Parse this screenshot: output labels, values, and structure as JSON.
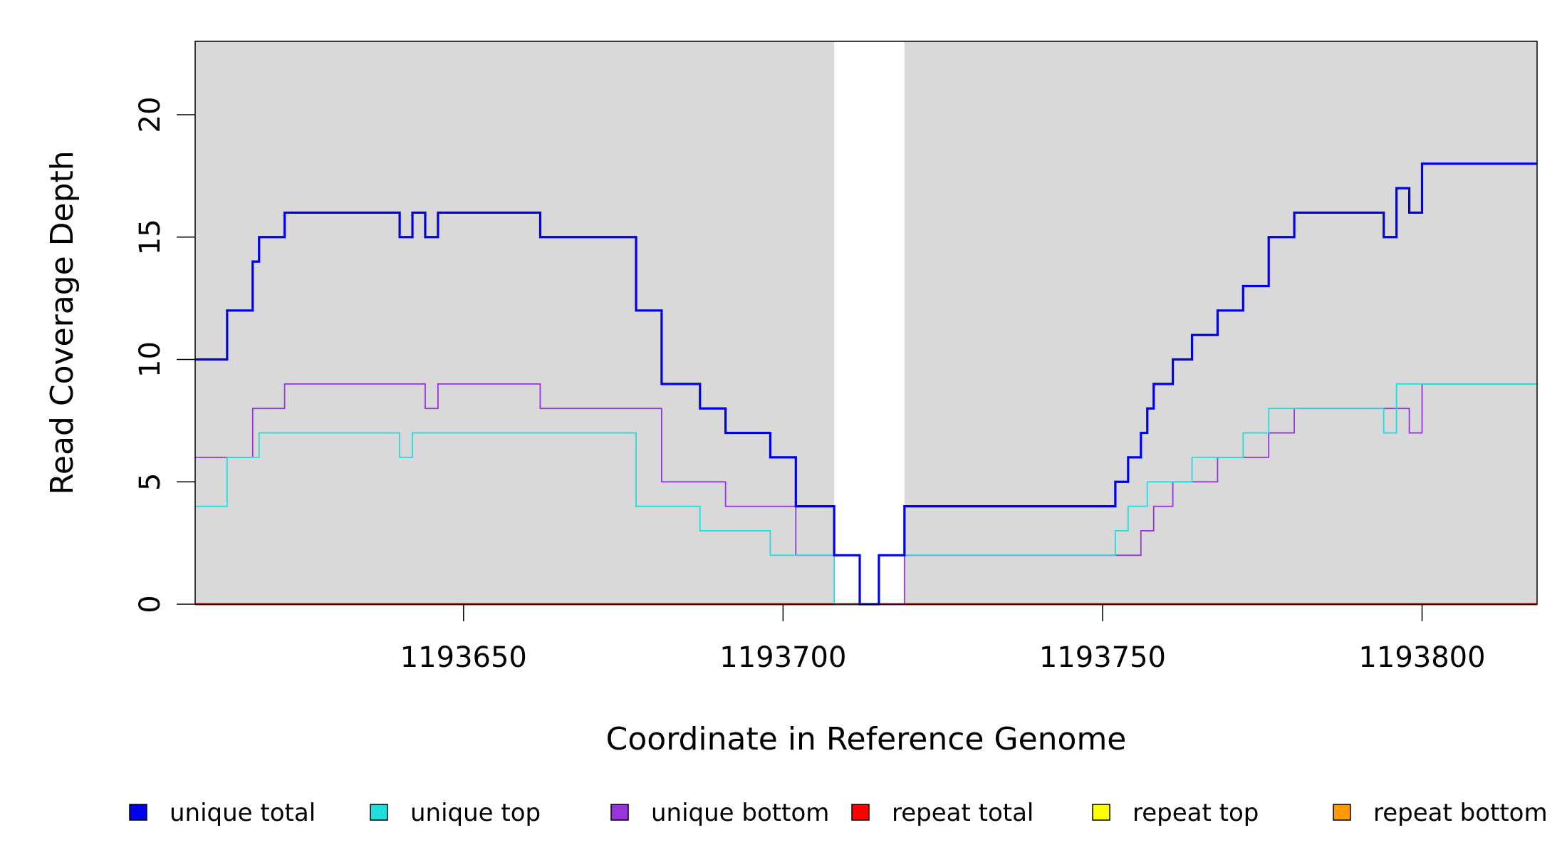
{
  "chart_data": {
    "type": "line",
    "title": "",
    "xlabel": "Coordinate in Reference Genome",
    "ylabel": "Read Coverage Depth",
    "xlim": [
      1193608,
      1193818
    ],
    "ylim": [
      0,
      23
    ],
    "x_ticks": [
      "1193650",
      "1193700",
      "1193750",
      "1193800"
    ],
    "y_ticks": [
      "0",
      "5",
      "10",
      "15",
      "20"
    ],
    "highlight_region": [
      1193708,
      1193719
    ],
    "background_color": "#d9d9d9",
    "highlight_color": "#ffffff",
    "grid": false,
    "legend_position": "bottom",
    "series": [
      {
        "name": "unique total",
        "color": "#0000ee",
        "steps": [
          [
            1193608,
            10
          ],
          [
            1193613,
            12
          ],
          [
            1193617,
            14
          ],
          [
            1193618,
            15
          ],
          [
            1193622,
            16
          ],
          [
            1193640,
            15
          ],
          [
            1193642,
            16
          ],
          [
            1193644,
            15
          ],
          [
            1193646,
            16
          ],
          [
            1193662,
            15
          ],
          [
            1193677,
            12
          ],
          [
            1193681,
            9
          ],
          [
            1193687,
            8
          ],
          [
            1193691,
            7
          ],
          [
            1193698,
            6
          ],
          [
            1193702,
            4
          ],
          [
            1193708,
            2
          ],
          [
            1193712,
            0
          ],
          [
            1193715,
            2
          ],
          [
            1193719,
            4
          ],
          [
            1193752,
            5
          ],
          [
            1193754,
            6
          ],
          [
            1193756,
            7
          ],
          [
            1193757,
            8
          ],
          [
            1193758,
            9
          ],
          [
            1193761,
            10
          ],
          [
            1193764,
            11
          ],
          [
            1193768,
            12
          ],
          [
            1193772,
            13
          ],
          [
            1193776,
            15
          ],
          [
            1193780,
            16
          ],
          [
            1193794,
            15
          ],
          [
            1193796,
            17
          ],
          [
            1193798,
            16
          ],
          [
            1193800,
            18
          ],
          [
            1193818,
            18
          ]
        ]
      },
      {
        "name": "unique top",
        "color": "#22dddd",
        "steps": [
          [
            1193608,
            4
          ],
          [
            1193613,
            6
          ],
          [
            1193618,
            7
          ],
          [
            1193640,
            6
          ],
          [
            1193642,
            7
          ],
          [
            1193677,
            4
          ],
          [
            1193687,
            3
          ],
          [
            1193698,
            2
          ],
          [
            1193708,
            0
          ],
          [
            1193715,
            2
          ],
          [
            1193752,
            3
          ],
          [
            1193754,
            4
          ],
          [
            1193757,
            5
          ],
          [
            1193764,
            6
          ],
          [
            1193772,
            7
          ],
          [
            1193776,
            8
          ],
          [
            1193794,
            7
          ],
          [
            1193796,
            9
          ],
          [
            1193818,
            9
          ]
        ]
      },
      {
        "name": "unique bottom",
        "color": "#9933dd",
        "steps": [
          [
            1193608,
            6
          ],
          [
            1193617,
            8
          ],
          [
            1193622,
            9
          ],
          [
            1193644,
            8
          ],
          [
            1193646,
            9
          ],
          [
            1193662,
            8
          ],
          [
            1193681,
            5
          ],
          [
            1193691,
            4
          ],
          [
            1193702,
            2
          ],
          [
            1193712,
            0
          ],
          [
            1193719,
            2
          ],
          [
            1193756,
            3
          ],
          [
            1193758,
            4
          ],
          [
            1193761,
            5
          ],
          [
            1193768,
            6
          ],
          [
            1193776,
            7
          ],
          [
            1193780,
            8
          ],
          [
            1193798,
            7
          ],
          [
            1193800,
            9
          ],
          [
            1193818,
            9
          ]
        ]
      },
      {
        "name": "repeat total",
        "color": "#ff0000",
        "steps": [
          [
            1193608,
            0
          ],
          [
            1193818,
            0
          ]
        ]
      },
      {
        "name": "repeat top",
        "color": "#ffff00",
        "steps": [
          [
            1193608,
            0
          ],
          [
            1193818,
            0
          ]
        ]
      },
      {
        "name": "repeat bottom",
        "color": "#ff9900",
        "steps": [
          [
            1193608,
            0
          ],
          [
            1193818,
            0
          ]
        ]
      }
    ]
  }
}
